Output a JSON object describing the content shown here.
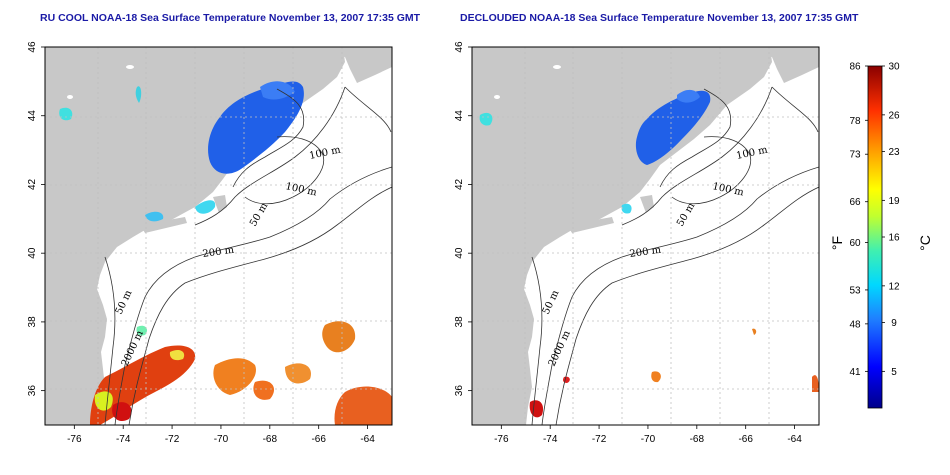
{
  "panels": [
    {
      "title": "RU COOL NOAA-18 Sea Surface Temperature November 13, 2007 17:35 GMT",
      "contour_labels": [
        "100 m",
        "100 m",
        "50 m",
        "200 m",
        "50 m",
        "2000 m"
      ]
    },
    {
      "title": "DECLOUDED NOAA-18 Sea Surface Temperature November 13, 2007 17:35 GMT",
      "contour_labels": [
        "100 m",
        "100 m",
        "50 m",
        "200 m",
        "50 m",
        "2000 m"
      ]
    }
  ],
  "axes": {
    "lon_ticks": [
      "-76",
      "-74",
      "-72",
      "-70",
      "-68",
      "-66",
      "-64"
    ],
    "lat_ticks": [
      "46",
      "44",
      "42",
      "40",
      "38",
      "36"
    ],
    "lon_values": [
      -76,
      -74,
      -72,
      -70,
      -68,
      -66,
      -64
    ],
    "lat_values": [
      46,
      44,
      42,
      40,
      38,
      36
    ],
    "lon_range": [
      -77.2,
      -63
    ],
    "lat_range": [
      35,
      46
    ]
  },
  "colorbar": {
    "fahrenheit_ticks": [
      "86",
      "78",
      "73",
      "66",
      "60",
      "53",
      "48",
      "41"
    ],
    "fahrenheit_values": [
      86,
      78,
      73,
      66,
      60,
      53,
      48,
      41
    ],
    "celsius_ticks": [
      "30",
      "26",
      "23",
      "19",
      "16",
      "12",
      "9",
      "5"
    ],
    "celsius_values": [
      30,
      26,
      23,
      19,
      16,
      12,
      9,
      5
    ],
    "celsius_range": [
      2,
      30
    ],
    "unit_f": "°F",
    "unit_c": "°C"
  },
  "colors": {
    "land": "#c8c8c8",
    "title": "#1a1aa6",
    "grid": "#c0c0c0"
  }
}
